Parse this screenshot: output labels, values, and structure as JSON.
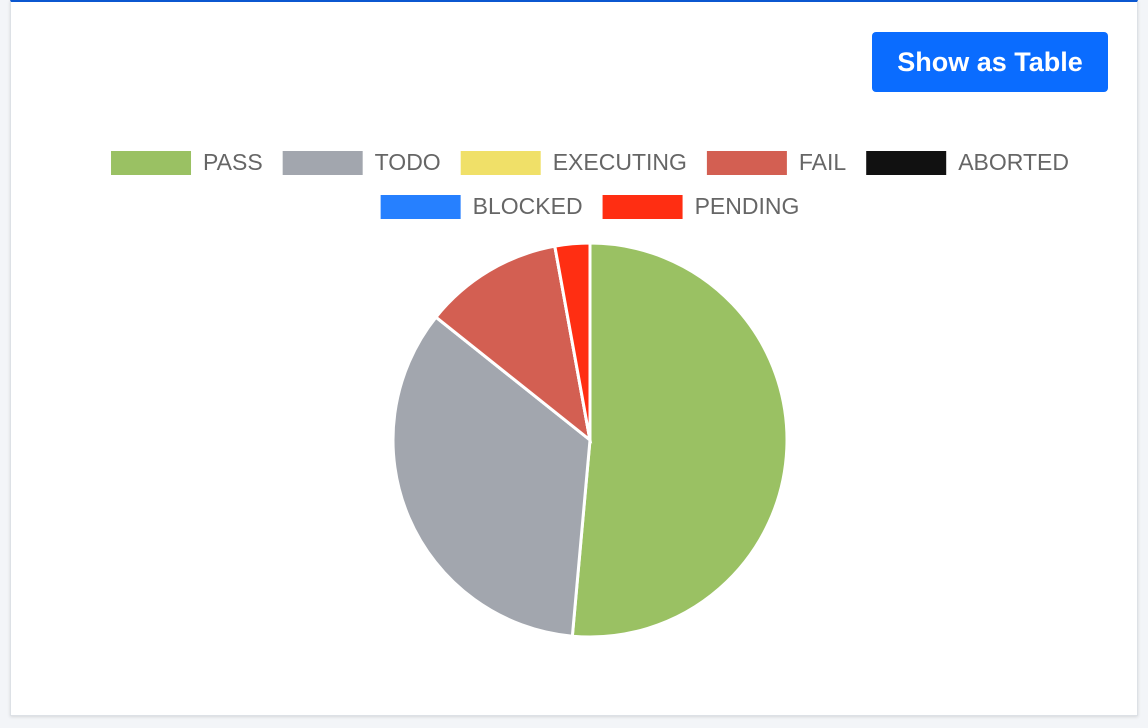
{
  "button": "Show as Table",
  "chart_data": {
    "type": "pie",
    "categories": [
      "PASS",
      "TODO",
      "EXECUTING",
      "FAIL",
      "ABORTED",
      "BLOCKED",
      "PENDING"
    ],
    "values": [
      18,
      12,
      0,
      4,
      0,
      0,
      1
    ],
    "colors": [
      "#9ac163",
      "#a2a6ae",
      "#f0e068",
      "#d35f52",
      "#111111",
      "#2680ff",
      "#ff2e12"
    ],
    "legend": "top"
  }
}
